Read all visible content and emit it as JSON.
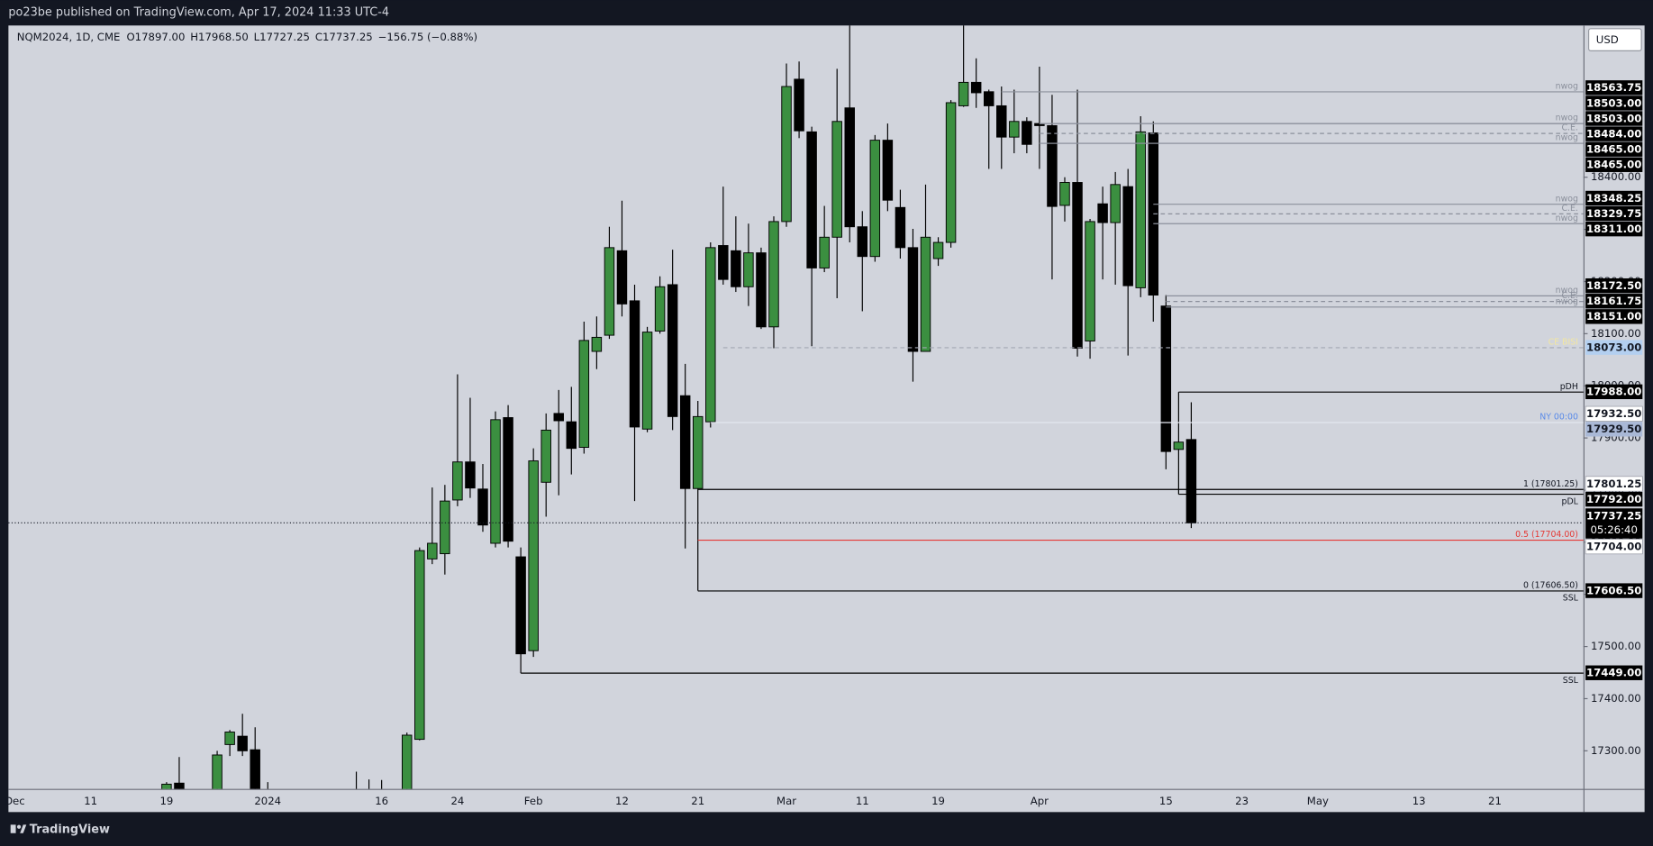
{
  "page": {
    "publisher": "po23be published on TradingView.com, Apr 17, 2024 11:33 UTC-4",
    "brand": "TradingView"
  },
  "chart_data": {
    "type": "candlestick",
    "symbol": "NQM2024, 1D, CME",
    "ohlc_labels": [
      "O17897.00",
      "H17968.50",
      "L17727.25",
      "C17737.25"
    ],
    "change": "−156.75 (−0.88%)",
    "currency": "USD",
    "up_color": "#3b8f40",
    "down_color": "#000000",
    "grid": false,
    "categories": [
      "Dec",
      null,
      null,
      null,
      null,
      null,
      "11",
      null,
      null,
      null,
      null,
      null,
      "19",
      null,
      null,
      null,
      null,
      null,
      null,
      null,
      "2024",
      null,
      null,
      null,
      null,
      null,
      null,
      null,
      null,
      "16",
      null,
      null,
      null,
      null,
      null,
      "24",
      null,
      null,
      null,
      null,
      null,
      "Feb",
      null,
      null,
      null,
      null,
      null,
      null,
      "12",
      null,
      null,
      null,
      null,
      null,
      "21",
      null,
      null,
      null,
      null,
      null,
      null,
      "Mar",
      null,
      null,
      null,
      null,
      null,
      "11",
      null,
      null,
      null,
      null,
      null,
      "19",
      null,
      null,
      null,
      null,
      null,
      null,
      null,
      "Apr",
      null,
      null,
      null,
      null,
      null,
      null,
      null,
      null,
      null,
      "15",
      null,
      null,
      null,
      null,
      null,
      "23",
      null,
      null,
      null,
      null,
      null,
      "May",
      null,
      null,
      null,
      null,
      null,
      null,
      null,
      "13",
      null,
      null,
      null,
      null,
      null,
      "21",
      null,
      null,
      null,
      null,
      null,
      null
    ],
    "open": [
      null,
      null,
      null,
      null,
      null,
      null,
      null,
      null,
      null,
      null,
      null,
      null,
      17200,
      17238,
      null,
      null,
      17210,
      17312,
      17328,
      17302,
      17210,
      null,
      null,
      null,
      null,
      null,
      null,
      17150,
      17150,
      17210,
      null,
      17200,
      17322,
      17668,
      17678,
      17781,
      17854,
      17802,
      17698,
      17939,
      17672,
      17492,
      17815,
      17947,
      17931,
      17882,
      18066,
      18097,
      18259,
      18163,
      17917,
      18105,
      18194,
      17981,
      17803,
      17931,
      18269,
      18259,
      18190,
      18255,
      18113,
      18315,
      18588,
      18487,
      18226,
      18285,
      18533,
      18305,
      18248,
      18471,
      18342,
      18265,
      18066,
      18244,
      18275,
      18537,
      18582,
      18564,
      18537,
      18477,
      18507,
      18503,
      18499,
      18346,
      18390,
      18086,
      18349,
      18313,
      18382,
      18188,
      18485,
      18153,
      17878,
      17897,
      null,
      null,
      null,
      null,
      null,
      null,
      null,
      null,
      null,
      null,
      null,
      null,
      null,
      null,
      null,
      null,
      null,
      null,
      null,
      null,
      null,
      null,
      null,
      null,
      null,
      null,
      null,
      null,
      null,
      null
    ],
    "high": [
      null,
      null,
      null,
      null,
      null,
      null,
      null,
      null,
      null,
      null,
      null,
      null,
      17240,
      17288,
      null,
      null,
      17300,
      17340,
      17371,
      17345,
      17240,
      null,
      null,
      null,
      null,
      null,
      null,
      17260,
      17245,
      17244,
      null,
      17335,
      17690,
      17805,
      17810,
      18022,
      17977,
      17850,
      17951,
      17963,
      17690,
      17880,
      17947,
      17992,
      17998,
      18123,
      18133,
      18305,
      18355,
      18194,
      18113,
      18210,
      18261,
      18042,
      17971,
      18275,
      18382,
      18325,
      18311,
      18265,
      18325,
      18618,
      18622,
      18497,
      18345,
      18608,
      18720,
      18335,
      18481,
      18503,
      18376,
      18301,
      18386,
      18285,
      18548,
      18720,
      18628,
      18568,
      18574,
      18568,
      18515,
      18612,
      18558,
      18400,
      18568,
      18320,
      18382,
      18410,
      18416,
      18517,
      18507,
      18174,
      17988,
      17968.5,
      null,
      null,
      null,
      null,
      null,
      null,
      null,
      null,
      null,
      null,
      null,
      null,
      null,
      null,
      null,
      null,
      null,
      null,
      null,
      null,
      null,
      null,
      null,
      null,
      null,
      null,
      null,
      null,
      null,
      null
    ],
    "low": [
      null,
      null,
      null,
      null,
      null,
      null,
      null,
      null,
      null,
      null,
      null,
      null,
      17150,
      17100,
      null,
      null,
      17200,
      17290,
      17290,
      17150,
      17050,
      null,
      null,
      null,
      null,
      null,
      null,
      17100,
      17100,
      17100,
      null,
      17180,
      17320,
      17658,
      17638,
      17769,
      17785,
      17720,
      17690,
      17690,
      17449,
      17480,
      17749,
      17790,
      17830,
      17870,
      18032,
      18090,
      18133,
      17779,
      17911,
      18100,
      17915,
      17688,
      17607,
      17920,
      18194,
      18180,
      18153,
      18109,
      18072,
      18305,
      18475,
      18076,
      18218,
      18168,
      18275,
      18143,
      18238,
      18335,
      18244,
      18008,
      18066,
      18230,
      18265,
      18535,
      18533,
      18416,
      18416,
      18446,
      18446,
      18416,
      18204,
      18315,
      18056,
      18052,
      18204,
      18194,
      18058,
      18170,
      18123,
      17840,
      17792,
      17727.25,
      null,
      null,
      null,
      null,
      null,
      null,
      null,
      null,
      null,
      null,
      null,
      null,
      null,
      null,
      null,
      null,
      null,
      null,
      null,
      null,
      null,
      null,
      null,
      null,
      null,
      null,
      null,
      null,
      null,
      null
    ],
    "close": [
      null,
      null,
      null,
      null,
      null,
      null,
      null,
      null,
      null,
      null,
      null,
      null,
      17236,
      17200,
      null,
      null,
      17292,
      17336,
      17300,
      17200,
      17100,
      null,
      null,
      null,
      null,
      null,
      null,
      17200,
      17200,
      17150,
      null,
      17330,
      17684,
      17698,
      17779,
      17854,
      17804,
      17733,
      17935,
      17702,
      17486,
      17856,
      17915,
      17933,
      17880,
      18087,
      18093,
      18265,
      18157,
      17921,
      18103,
      18190,
      17941,
      17803,
      17941,
      18265,
      18204,
      18190,
      18255,
      18113,
      18315,
      18574,
      18489,
      18226,
      18285,
      18507,
      18305,
      18248,
      18471,
      18356,
      18265,
      18066,
      18285,
      18275,
      18543,
      18582,
      18562,
      18537,
      18477,
      18507,
      18463,
      18499,
      18344,
      18390,
      18072,
      18315,
      18313,
      18386,
      18192,
      18487,
      18174,
      17874,
      17892,
      17737.25,
      null,
      null,
      null,
      null,
      null,
      null,
      null,
      null,
      null,
      null,
      null,
      null,
      null,
      null,
      null,
      null,
      null,
      null,
      null,
      null,
      null,
      null,
      null,
      null,
      null,
      null,
      null,
      null,
      null,
      null
    ],
    "ylim": [
      17227,
      18691
    ],
    "yticks": [
      {
        "value": 17300,
        "label": "17300.00"
      },
      {
        "value": 17400,
        "label": "17400.00"
      },
      {
        "value": 17500,
        "label": "17500.00"
      },
      {
        "value": 17600,
        "label": "17600.00"
      },
      {
        "value": 17700,
        "label": "17700.00"
      },
      {
        "value": 17800,
        "label": "17800.00"
      },
      {
        "value": 17900,
        "label": "17900.00"
      },
      {
        "value": 18000,
        "label": "18000.00"
      },
      {
        "value": 18100,
        "label": "18100.00"
      },
      {
        "value": 18200,
        "label": "18200.00"
      },
      {
        "value": 18300,
        "label": "18300.00"
      },
      {
        "value": 18400,
        "label": "18400.00"
      }
    ],
    "levels": [
      {
        "value": 18563.75,
        "label": "18563.75",
        "tag": "nwog",
        "start": 78,
        "color": "#8b909c",
        "style": "solid",
        "tag_color": "#8b909c",
        "label_bg": "#000000",
        "label_fg": "#ffffff"
      },
      {
        "value": 18503,
        "label": "18503.00",
        "tag": "nwog",
        "start": 81,
        "color": "#8b909c",
        "style": "solid",
        "tag_color": "#8b909c",
        "label_bg": "#000000",
        "label_fg": "#ffffff"
      },
      {
        "value": 18503,
        "label": "18503.00",
        "start": 81,
        "color": "#8b909c",
        "style": "solid",
        "label_bg": "#000000",
        "label_fg": "#ffffff"
      },
      {
        "value": 18484,
        "label": "18484.00",
        "tag": "C.E.",
        "start": 81,
        "color": "#8b909c",
        "style": "dashed",
        "tag_color": "#8b909c",
        "label_bg": "#000000",
        "label_fg": "#ffffff"
      },
      {
        "value": 18465,
        "label": "18465.00",
        "tag": "nwog",
        "start": 81,
        "color": "#8b909c",
        "style": "solid",
        "tag_color": "#8b909c",
        "label_bg": "#000000",
        "label_fg": "#ffffff"
      },
      {
        "value": 18465,
        "label": "18465.00",
        "start": 81,
        "color": "#8b909c",
        "style": "solid",
        "label_bg": "#000000",
        "label_fg": "#ffffff"
      },
      {
        "value": 18348.25,
        "label": "18348.25",
        "tag": "nwog",
        "start": 90,
        "color": "#8b909c",
        "style": "solid",
        "tag_color": "#8b909c",
        "label_bg": "#000000",
        "label_fg": "#ffffff"
      },
      {
        "value": 18329.75,
        "label": "18329.75",
        "tag": "C.E.",
        "start": 90,
        "color": "#8b909c",
        "style": "dashed",
        "tag_color": "#8b909c",
        "label_bg": "#000000",
        "label_fg": "#ffffff"
      },
      {
        "value": 18311,
        "label": "18311.00",
        "tag": "nwog",
        "start": 90,
        "color": "#8b909c",
        "style": "solid",
        "tag_color": "#8b909c",
        "label_bg": "#000000",
        "label_fg": "#ffffff"
      },
      {
        "value": 18172.5,
        "label": "18172.50",
        "tag": "nwog",
        "start": 91,
        "color": "#8b909c",
        "style": "solid",
        "tag_color": "#8b909c",
        "label_bg": "#000000",
        "label_fg": "#ffffff"
      },
      {
        "value": 18161.75,
        "label": "18161.75",
        "tag": "C.E.",
        "start": 91,
        "color": "#8b909c",
        "style": "dashed",
        "tag_color": "#8b909c",
        "label_bg": "#000000",
        "label_fg": "#ffffff"
      },
      {
        "value": 18151,
        "label": "18151.00",
        "tag": "nwog",
        "start": 91,
        "color": "#8b909c",
        "style": "solid",
        "tag_color": "#8b909c",
        "label_bg": "#000000",
        "label_fg": "#ffffff"
      },
      {
        "value": 18073,
        "label": "18073.00",
        "tag": "CE BISI",
        "start": 56,
        "color": "#a3a7b3",
        "style": "dashed",
        "tag_color": "#f3e7a0",
        "label_bg": "#b3cff0",
        "label_fg": "#131722"
      },
      {
        "value": 17988,
        "label": "17988.00",
        "tag": "pDH",
        "start": 92,
        "color": "#000000",
        "style": "solid",
        "tag_color": "#131722",
        "label_bg": "#000000",
        "label_fg": "#ffffff"
      },
      {
        "value": 17932.5,
        "label": "17932.50",
        "start": 93,
        "color": "#000000",
        "style": "none",
        "label_bg": "#ffffff",
        "label_fg": "#131722"
      },
      {
        "value": 17929.5,
        "label": "17929.50",
        "tag": "NY 00:00",
        "start": 55,
        "color": "#e4e7ef",
        "style": "solid",
        "tag_color": "#5b8be8",
        "label_bg": "#a9b8d6",
        "label_fg": "#131722"
      },
      {
        "value": 17801.25,
        "label": "17801.25",
        "tag": "1 (17801.25)",
        "start": 54,
        "color": "#000000",
        "style": "solid",
        "tag_color": "#131722",
        "label_bg": "#ffffff",
        "label_fg": "#131722"
      },
      {
        "value": 17792,
        "label": "17792.00",
        "tag_below": "pDL",
        "start": 92,
        "color": "#000000",
        "style": "solid",
        "tag_color": "#131722",
        "label_bg": "#000000",
        "label_fg": "#ffffff"
      },
      {
        "value": 17737.25,
        "label": "17737.25",
        "countdown": "05:26:40",
        "start": 0,
        "color": "#131722",
        "style": "dotted",
        "label_bg": "#000000",
        "label_fg": "#ffffff"
      },
      {
        "value": 17704,
        "label": "17704.00",
        "tag": "0.5 (17704.00)",
        "start": 54,
        "color": "#e53935",
        "style": "solid",
        "tag_color": "#e53935",
        "label_bg": "#ffffff",
        "label_fg": "#131722"
      },
      {
        "value": 17606.5,
        "label": "17606.50",
        "tag": "0 (17606.50)",
        "tag_below": "SSL",
        "start": 54,
        "color": "#000000",
        "style": "solid",
        "tag_color": "#131722",
        "label_bg": "#000000",
        "label_fg": "#ffffff"
      },
      {
        "value": 17449,
        "label": "17449.00",
        "tag_below": "SSL",
        "start": 40,
        "color": "#000000",
        "style": "solid",
        "tag_color": "#131722",
        "label_bg": "#000000",
        "label_fg": "#ffffff"
      }
    ]
  }
}
